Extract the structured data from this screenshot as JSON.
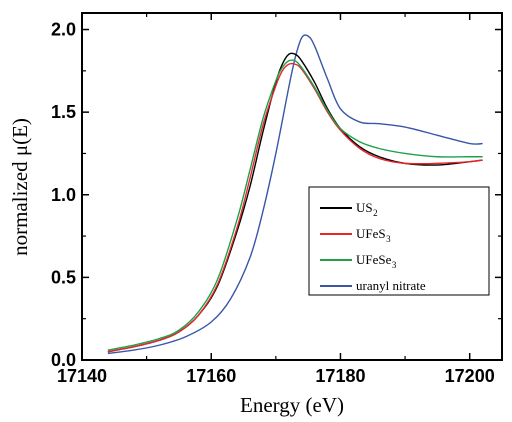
{
  "chart_data": {
    "type": "line",
    "xlabel": "Energy (eV)",
    "ylabel": "normalized μ(E)",
    "xlim": [
      17140,
      17205
    ],
    "ylim": [
      0.0,
      2.1
    ],
    "x_ticks": [
      "17140",
      "17160",
      "17180",
      "17200"
    ],
    "y_ticks": [
      "0.0",
      "0.5",
      "1.0",
      "1.5",
      "2.0"
    ],
    "legend_position": "center-right",
    "series": [
      {
        "name": "US2",
        "legend_main": "US",
        "legend_sub": "2",
        "color": "#000000",
        "x": [
          17144,
          17148,
          17152,
          17155,
          17158,
          17161,
          17164,
          17166,
          17168,
          17170,
          17171,
          17172,
          17173,
          17174,
          17176,
          17178,
          17180,
          17183,
          17186,
          17190,
          17195,
          17200,
          17202
        ],
        "y": [
          0.05,
          0.08,
          0.12,
          0.17,
          0.27,
          0.45,
          0.78,
          1.05,
          1.38,
          1.68,
          1.79,
          1.85,
          1.85,
          1.81,
          1.68,
          1.52,
          1.4,
          1.29,
          1.23,
          1.19,
          1.18,
          1.2,
          1.21
        ]
      },
      {
        "name": "UFeS3",
        "legend_main": "UFeS",
        "legend_sub": "3",
        "color": "#e8262b",
        "x": [
          17144,
          17148,
          17152,
          17155,
          17158,
          17161,
          17164,
          17166,
          17168,
          17170,
          17171,
          17172,
          17173,
          17174,
          17176,
          17178,
          17180,
          17183,
          17186,
          17190,
          17195,
          17200,
          17202
        ],
        "y": [
          0.05,
          0.08,
          0.12,
          0.17,
          0.27,
          0.46,
          0.8,
          1.1,
          1.42,
          1.66,
          1.75,
          1.79,
          1.79,
          1.76,
          1.64,
          1.5,
          1.39,
          1.28,
          1.22,
          1.19,
          1.19,
          1.2,
          1.21
        ]
      },
      {
        "name": "UFeSe3",
        "legend_main": "UFeSe",
        "legend_sub": "3",
        "color": "#1fa14a",
        "x": [
          17144,
          17148,
          17152,
          17155,
          17158,
          17161,
          17164,
          17166,
          17168,
          17170,
          17171,
          17172,
          17173,
          17174,
          17176,
          17178,
          17180,
          17183,
          17186,
          17190,
          17195,
          17200,
          17202
        ],
        "y": [
          0.06,
          0.09,
          0.13,
          0.18,
          0.29,
          0.49,
          0.85,
          1.15,
          1.46,
          1.69,
          1.77,
          1.81,
          1.81,
          1.77,
          1.65,
          1.51,
          1.4,
          1.32,
          1.28,
          1.25,
          1.23,
          1.23,
          1.23
        ]
      },
      {
        "name": "uranyl nitrate",
        "legend_main": "uranyl nitrate",
        "legend_sub": "",
        "color": "#3a56a8",
        "x": [
          17144,
          17148,
          17152,
          17156,
          17160,
          17163,
          17166,
          17168,
          17170,
          17172,
          17173,
          17174,
          17175,
          17176,
          17178,
          17180,
          17183,
          17186,
          17190,
          17195,
          17200,
          17202
        ],
        "y": [
          0.04,
          0.06,
          0.09,
          0.14,
          0.23,
          0.37,
          0.62,
          0.9,
          1.25,
          1.65,
          1.83,
          1.95,
          1.96,
          1.9,
          1.7,
          1.52,
          1.44,
          1.43,
          1.41,
          1.36,
          1.31,
          1.31
        ]
      }
    ]
  }
}
